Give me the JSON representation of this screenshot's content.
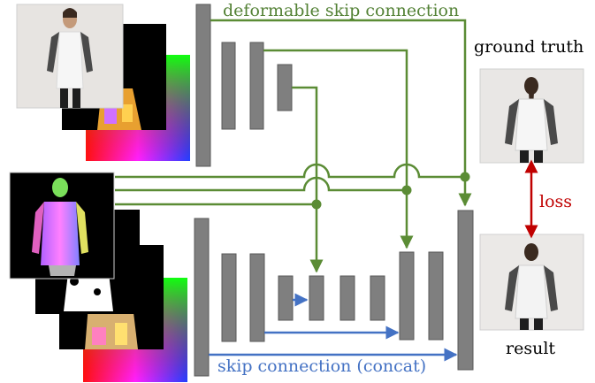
{
  "labels": {
    "deformable_skip": "deformable skip connection",
    "skip_concat": "skip connection (concat)",
    "ground_truth": "ground truth",
    "result": "result",
    "loss": "loss"
  },
  "colors": {
    "green": "#5b8c35",
    "blue": "#4472c4",
    "red": "#c00000",
    "block": "#7f7f7f",
    "block_edge": "#595959"
  }
}
